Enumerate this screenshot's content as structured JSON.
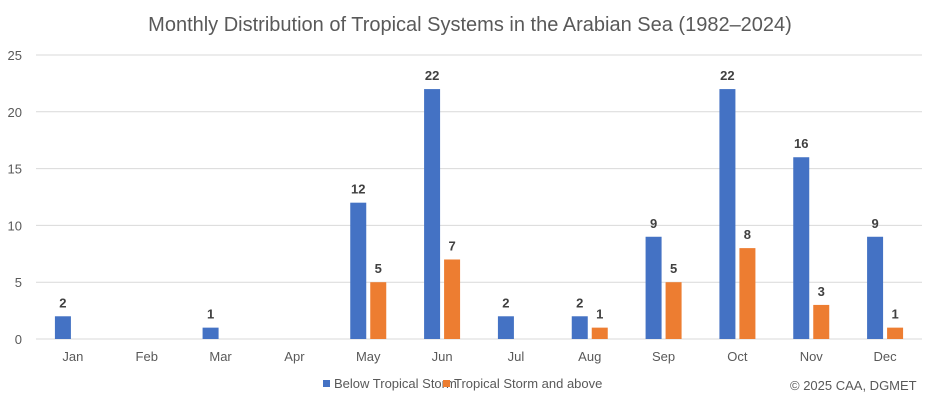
{
  "chart_data": {
    "type": "bar",
    "title": "Monthly Distribution of Tropical Systems in the Arabian Sea (1982–2024)",
    "xlabel": "",
    "ylabel": "",
    "categories": [
      "Jan",
      "Feb",
      "Mar",
      "Apr",
      "May",
      "Jun",
      "Jul",
      "Aug",
      "Sep",
      "Oct",
      "Nov",
      "Dec"
    ],
    "series": [
      {
        "name": "Below Tropical Storm",
        "color": "#4472c4",
        "values": [
          2,
          0,
          1,
          0,
          12,
          22,
          2,
          2,
          9,
          22,
          16,
          9
        ]
      },
      {
        "name": "Tropical Storm and above",
        "color": "#ed7d31",
        "values": [
          0,
          0,
          0,
          0,
          5,
          7,
          0,
          1,
          5,
          8,
          3,
          1
        ]
      }
    ],
    "ylim": [
      0,
      25
    ],
    "yticks": [
      0,
      5,
      10,
      15,
      20,
      25
    ],
    "grid": true,
    "legend": "bottom",
    "data_labels": true
  },
  "footer": {
    "credit": "© 2025 CAA, DGMET"
  }
}
